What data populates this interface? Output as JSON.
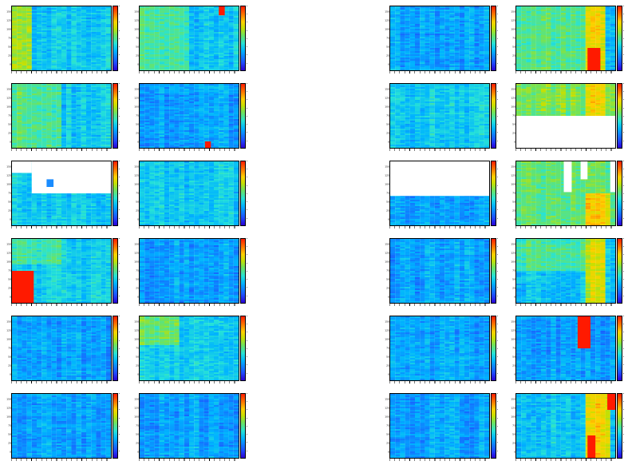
{
  "chart_data": [
    {
      "type": "heatmap",
      "y_tick_labels": [
        "0",
        "25",
        "50",
        "75",
        "100",
        "125",
        "150"
      ],
      "bg": "cyan",
      "bias": [
        {
          "x0": 0.0,
          "x1": 0.2,
          "y0": 0.0,
          "y1": 1.0,
          "level": 0.58
        }
      ],
      "blocks": []
    },
    {
      "type": "heatmap",
      "y_tick_labels": [
        "0",
        "25",
        "50",
        "75",
        "100",
        "125",
        "150"
      ],
      "bg": "cyan",
      "bias": [
        {
          "x0": 0.0,
          "x1": 0.5,
          "y0": 0.0,
          "y1": 1.0,
          "level": 0.48
        }
      ],
      "blocks": [
        {
          "kind": "red",
          "x0": 0.8,
          "x1": 0.86,
          "y0": 0.86,
          "y1": 1.0
        }
      ]
    },
    {
      "type": "heatmap",
      "y_tick_labels": [
        "0",
        "25",
        "50",
        "75",
        "100",
        "125",
        "150"
      ],
      "bg": "blue",
      "bias": [],
      "blocks": []
    },
    {
      "type": "heatmap",
      "y_tick_labels": [
        "0",
        "25",
        "50",
        "75",
        "100",
        "125",
        "150"
      ],
      "bg": "cyan",
      "bias": [
        {
          "x0": 0.0,
          "x1": 0.7,
          "y0": 0.0,
          "y1": 1.0,
          "level": 0.5
        },
        {
          "x0": 0.72,
          "x1": 0.92,
          "y0": 0.0,
          "y1": 1.0,
          "level": 0.72
        }
      ],
      "blocks": [
        {
          "kind": "red",
          "x0": 0.72,
          "x1": 0.85,
          "y0": 0.0,
          "y1": 0.35
        }
      ]
    },
    {
      "type": "heatmap",
      "y_tick_labels": [
        "0",
        "25",
        "50",
        "75",
        "100",
        "125",
        "150"
      ],
      "bg": "cyan",
      "bias": [
        {
          "x0": 0.0,
          "x1": 0.5,
          "y0": 0.0,
          "y1": 1.0,
          "level": 0.5
        }
      ],
      "blocks": []
    },
    {
      "type": "heatmap",
      "y_tick_labels": [
        "0",
        "25",
        "50",
        "75",
        "100",
        "125",
        "150"
      ],
      "bg": "blue",
      "bias": [],
      "blocks": [
        {
          "kind": "red",
          "x0": 0.66,
          "x1": 0.72,
          "y0": 0.0,
          "y1": 0.1
        }
      ]
    },
    {
      "type": "heatmap",
      "y_tick_labels": [
        "0",
        "25",
        "50",
        "75",
        "100",
        "125",
        "150"
      ],
      "bg": "cyan",
      "bias": [],
      "blocks": []
    },
    {
      "type": "heatmap",
      "y_tick_labels": [
        "0",
        "25",
        "50",
        "75",
        "100",
        "125",
        "150"
      ],
      "bg": "cyan",
      "bias": [
        {
          "x0": 0.0,
          "x1": 1.0,
          "y0": 0.5,
          "y1": 1.0,
          "level": 0.56
        },
        {
          "x0": 0.72,
          "x1": 0.92,
          "y0": 0.5,
          "y1": 1.0,
          "level": 0.72
        }
      ],
      "blocks": [
        {
          "kind": "white",
          "x0": 0.0,
          "x1": 1.0,
          "y0": 0.0,
          "y1": 0.5
        }
      ]
    },
    {
      "type": "heatmap",
      "y_tick_labels": [
        "0",
        "25",
        "50",
        "75",
        "100",
        "125",
        "150"
      ],
      "bg": "cyan",
      "bias": [],
      "blocks": [
        {
          "kind": "white",
          "x0": 0.2,
          "x1": 1.0,
          "y0": 0.5,
          "y1": 1.0
        },
        {
          "kind": "white",
          "x0": 0.0,
          "x1": 0.2,
          "y0": 0.82,
          "y1": 1.0
        },
        {
          "kind": "cell",
          "x0": 0.35,
          "x1": 0.42,
          "y0": 0.6,
          "y1": 0.72
        }
      ]
    },
    {
      "type": "heatmap",
      "y_tick_labels": [
        "0",
        "25",
        "50",
        "75",
        "100",
        "125",
        "150"
      ],
      "bg": "cyan",
      "bias": [],
      "blocks": []
    },
    {
      "type": "heatmap",
      "y_tick_labels": [
        "0",
        "25",
        "50",
        "75",
        "100",
        "125",
        "150"
      ],
      "bg": "blue",
      "bias": [],
      "blocks": [
        {
          "kind": "white",
          "x0": 0.0,
          "x1": 1.0,
          "y0": 0.46,
          "y1": 1.0
        }
      ]
    },
    {
      "type": "heatmap",
      "y_tick_labels": [
        "0",
        "25",
        "50",
        "75",
        "100",
        "125",
        "150"
      ],
      "bg": "green",
      "bias": [
        {
          "x0": 0.72,
          "x1": 0.95,
          "y0": 0.0,
          "y1": 0.5,
          "level": 0.74
        }
      ],
      "blocks": [
        {
          "kind": "white",
          "x0": 0.48,
          "x1": 0.56,
          "y0": 0.52,
          "y1": 1.0
        },
        {
          "kind": "white",
          "x0": 0.65,
          "x1": 0.72,
          "y0": 0.72,
          "y1": 1.0
        },
        {
          "kind": "white",
          "x0": 0.95,
          "x1": 1.0,
          "y0": 0.52,
          "y1": 1.0
        }
      ]
    },
    {
      "type": "heatmap",
      "y_tick_labels": [
        "0",
        "25",
        "50",
        "75",
        "100",
        "125",
        "150"
      ],
      "bg": "cyan",
      "bias": [
        {
          "x0": 0.0,
          "x1": 0.5,
          "y0": 0.6,
          "y1": 1.0,
          "level": 0.46
        }
      ],
      "blocks": [
        {
          "kind": "red",
          "x0": 0.0,
          "x1": 0.22,
          "y0": 0.0,
          "y1": 0.5
        }
      ]
    },
    {
      "type": "heatmap",
      "y_tick_labels": [
        "0",
        "25",
        "50",
        "75",
        "100",
        "125",
        "150"
      ],
      "bg": "blue",
      "bias": [],
      "blocks": []
    },
    {
      "type": "heatmap",
      "y_tick_labels": [
        "0",
        "25",
        "50",
        "75",
        "100",
        "125",
        "150"
      ],
      "bg": "blue",
      "bias": [],
      "blocks": []
    },
    {
      "type": "heatmap",
      "y_tick_labels": [
        "0",
        "25",
        "50",
        "75",
        "100",
        "125",
        "150"
      ],
      "bg": "cyan",
      "bias": [
        {
          "x0": 0.0,
          "x1": 0.7,
          "y0": 0.5,
          "y1": 1.0,
          "level": 0.5
        },
        {
          "x0": 0.72,
          "x1": 0.9,
          "y0": 0.0,
          "y1": 1.0,
          "level": 0.68
        }
      ],
      "blocks": []
    },
    {
      "type": "heatmap",
      "y_tick_labels": [
        "0",
        "25",
        "50",
        "75",
        "100",
        "125",
        "150"
      ],
      "bg": "blue",
      "bias": [],
      "blocks": []
    },
    {
      "type": "heatmap",
      "y_tick_labels": [
        "0",
        "25",
        "50",
        "75",
        "100",
        "125",
        "150"
      ],
      "bg": "cyan",
      "bias": [
        {
          "x0": 0.0,
          "x1": 0.4,
          "y0": 0.55,
          "y1": 1.0,
          "level": 0.52
        }
      ],
      "blocks": []
    },
    {
      "type": "heatmap",
      "y_tick_labels": [
        "0",
        "25",
        "50",
        "75",
        "100",
        "125",
        "150"
      ],
      "bg": "blue",
      "bias": [],
      "blocks": []
    },
    {
      "type": "heatmap",
      "y_tick_labels": [
        "0",
        "25",
        "50",
        "75",
        "100",
        "125",
        "150"
      ],
      "bg": "blue",
      "bias": [],
      "blocks": [
        {
          "kind": "red",
          "x0": 0.62,
          "x1": 0.75,
          "y0": 0.5,
          "y1": 1.0
        }
      ]
    },
    {
      "type": "heatmap",
      "y_tick_labels": [
        "0",
        "25",
        "50",
        "75",
        "100",
        "125",
        "150"
      ],
      "bg": "blue",
      "bias": [],
      "blocks": []
    },
    {
      "type": "heatmap",
      "y_tick_labels": [
        "0",
        "25",
        "50",
        "75",
        "100",
        "125",
        "150"
      ],
      "bg": "blue",
      "bias": [],
      "blocks": []
    },
    {
      "type": "heatmap",
      "y_tick_labels": [
        "0",
        "25",
        "50",
        "75",
        "100",
        "125",
        "150"
      ],
      "bg": "blue",
      "bias": [],
      "blocks": []
    },
    {
      "type": "heatmap",
      "y_tick_labels": [
        "0",
        "25",
        "50",
        "75",
        "100",
        "125",
        "150"
      ],
      "bg": "cyan",
      "bias": [
        {
          "x0": 0.72,
          "x1": 0.95,
          "y0": 0.0,
          "y1": 1.0,
          "level": 0.72
        }
      ],
      "blocks": [
        {
          "kind": "red",
          "x0": 0.72,
          "x1": 0.8,
          "y0": 0.0,
          "y1": 0.35
        },
        {
          "kind": "red",
          "x0": 0.92,
          "x1": 1.0,
          "y0": 0.75,
          "y1": 1.0
        }
      ]
    }
  ]
}
